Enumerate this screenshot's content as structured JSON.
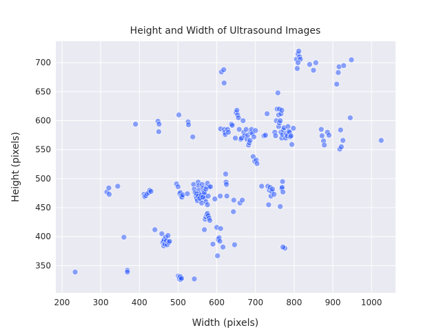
{
  "chart_data": {
    "type": "scatter",
    "title": "Height and Width of Ultrasound Images",
    "xlabel": "Width (pixels)",
    "ylabel": "Height (pixels)",
    "xlim": [
      184,
      1062
    ],
    "ylim": [
      303,
      737
    ],
    "xticks": [
      200,
      300,
      400,
      500,
      600,
      700,
      800,
      900,
      1000
    ],
    "yticks": [
      350,
      400,
      450,
      500,
      550,
      600,
      650,
      700
    ],
    "grid": true,
    "background_color": "#eaeaf2",
    "point_color": "#1f4fff",
    "point_opacity": 0.5,
    "points": [
      [
        234,
        339
      ],
      [
        316,
        477
      ],
      [
        321,
        484
      ],
      [
        322,
        473
      ],
      [
        344,
        487
      ],
      [
        360,
        399
      ],
      [
        369,
        342
      ],
      [
        369,
        339
      ],
      [
        390,
        594
      ],
      [
        412,
        473
      ],
      [
        414,
        469
      ],
      [
        417,
        471
      ],
      [
        420,
        474
      ],
      [
        424,
        476
      ],
      [
        427,
        480
      ],
      [
        430,
        478
      ],
      [
        440,
        412
      ],
      [
        448,
        599
      ],
      [
        450,
        581
      ],
      [
        451,
        594
      ],
      [
        458,
        405
      ],
      [
        460,
        390
      ],
      [
        462,
        392
      ],
      [
        463,
        384
      ],
      [
        464,
        395
      ],
      [
        466,
        387
      ],
      [
        468,
        399
      ],
      [
        470,
        393
      ],
      [
        472,
        386
      ],
      [
        474,
        402
      ],
      [
        476,
        390
      ],
      [
        478,
        392
      ],
      [
        496,
        491
      ],
      [
        500,
        332
      ],
      [
        502,
        330
      ],
      [
        503,
        327
      ],
      [
        504,
        329
      ],
      [
        506,
        331
      ],
      [
        507,
        326
      ],
      [
        509,
        328
      ],
      [
        500,
        486
      ],
      [
        502,
        610
      ],
      [
        504,
        474
      ],
      [
        506,
        476
      ],
      [
        508,
        470
      ],
      [
        510,
        468
      ],
      [
        512,
        472
      ],
      [
        524,
        474
      ],
      [
        526,
        598
      ],
      [
        527,
        593
      ],
      [
        538,
        572
      ],
      [
        542,
        327
      ],
      [
        540,
        490
      ],
      [
        542,
        482
      ],
      [
        544,
        476
      ],
      [
        546,
        470
      ],
      [
        548,
        466
      ],
      [
        550,
        462
      ],
      [
        552,
        494
      ],
      [
        553,
        488
      ],
      [
        554,
        480
      ],
      [
        556,
        474
      ],
      [
        558,
        468
      ],
      [
        560,
        464
      ],
      [
        561,
        458
      ],
      [
        562,
        490
      ],
      [
        564,
        484
      ],
      [
        566,
        478
      ],
      [
        568,
        472
      ],
      [
        570,
        466
      ],
      [
        572,
        460
      ],
      [
        574,
        486
      ],
      [
        576,
        492
      ],
      [
        578,
        470
      ],
      [
        580,
        486
      ],
      [
        548,
        474
      ],
      [
        552,
        470
      ],
      [
        556,
        466
      ],
      [
        560,
        472
      ],
      [
        564,
        468
      ],
      [
        568,
        476
      ],
      [
        572,
        482
      ],
      [
        576,
        455
      ],
      [
        568,
        412
      ],
      [
        570,
        430
      ],
      [
        572,
        434
      ],
      [
        574,
        438
      ],
      [
        576,
        440
      ],
      [
        578,
        436
      ],
      [
        580,
        432
      ],
      [
        582,
        428
      ],
      [
        584,
        486
      ],
      [
        590,
        387
      ],
      [
        595,
        465
      ],
      [
        600,
        416
      ],
      [
        602,
        367
      ],
      [
        604,
        395
      ],
      [
        606,
        398
      ],
      [
        608,
        392
      ],
      [
        609,
        470
      ],
      [
        610,
        586
      ],
      [
        610,
        414
      ],
      [
        612,
        684
      ],
      [
        616,
        382
      ],
      [
        618,
        688
      ],
      [
        619,
        665
      ],
      [
        620,
        585
      ],
      [
        621,
        580
      ],
      [
        622,
        576
      ],
      [
        623,
        508
      ],
      [
        624,
        494
      ],
      [
        625,
        490
      ],
      [
        626,
        470
      ],
      [
        628,
        585
      ],
      [
        630,
        580
      ],
      [
        638,
        594
      ],
      [
        640,
        592
      ],
      [
        643,
        443
      ],
      [
        644,
        463
      ],
      [
        646,
        386
      ],
      [
        648,
        570
      ],
      [
        650,
        614
      ],
      [
        652,
        618
      ],
      [
        654,
        610
      ],
      [
        656,
        605
      ],
      [
        658,
        585
      ],
      [
        660,
        458
      ],
      [
        662,
        568
      ],
      [
        664,
        570
      ],
      [
        666,
        463
      ],
      [
        668,
        600
      ],
      [
        670,
        580
      ],
      [
        672,
        574
      ],
      [
        676,
        585
      ],
      [
        678,
        568
      ],
      [
        680,
        575
      ],
      [
        682,
        558
      ],
      [
        684,
        562
      ],
      [
        686,
        566
      ],
      [
        688,
        580
      ],
      [
        690,
        585
      ],
      [
        692,
        578
      ],
      [
        694,
        538
      ],
      [
        696,
        572
      ],
      [
        698,
        530
      ],
      [
        700,
        583
      ],
      [
        702,
        532
      ],
      [
        704,
        526
      ],
      [
        716,
        487
      ],
      [
        722,
        574
      ],
      [
        726,
        575
      ],
      [
        730,
        612
      ],
      [
        732,
        487
      ],
      [
        734,
        455
      ],
      [
        736,
        480
      ],
      [
        738,
        485
      ],
      [
        740,
        470
      ],
      [
        742,
        478
      ],
      [
        744,
        482
      ],
      [
        748,
        473
      ],
      [
        750,
        580
      ],
      [
        752,
        574
      ],
      [
        754,
        600
      ],
      [
        756,
        620
      ],
      [
        758,
        648
      ],
      [
        760,
        590
      ],
      [
        762,
        596
      ],
      [
        764,
        452
      ],
      [
        766,
        580
      ],
      [
        768,
        570
      ],
      [
        770,
        576
      ],
      [
        772,
        584
      ],
      [
        774,
        588
      ],
      [
        776,
        380
      ],
      [
        778,
        570
      ],
      [
        780,
        578
      ],
      [
        782,
        574
      ],
      [
        784,
        590
      ],
      [
        786,
        582
      ],
      [
        788,
        580
      ],
      [
        790,
        572
      ],
      [
        792,
        574
      ],
      [
        794,
        559
      ],
      [
        798,
        587
      ],
      [
        768,
        483
      ],
      [
        769,
        485
      ],
      [
        770,
        495
      ],
      [
        771,
        477
      ],
      [
        771,
        382
      ],
      [
        760,
        610
      ],
      [
        762,
        620
      ],
      [
        764,
        600
      ],
      [
        766,
        612
      ],
      [
        768,
        618
      ],
      [
        806,
        706
      ],
      [
        808,
        690
      ],
      [
        810,
        715
      ],
      [
        812,
        720
      ],
      [
        814,
        710
      ],
      [
        816,
        706
      ],
      [
        810,
        700
      ],
      [
        840,
        697
      ],
      [
        850,
        687
      ],
      [
        856,
        700
      ],
      [
        870,
        585
      ],
      [
        872,
        574
      ],
      [
        876,
        565
      ],
      [
        878,
        558
      ],
      [
        886,
        580
      ],
      [
        890,
        575
      ],
      [
        910,
        663
      ],
      [
        914,
        683
      ],
      [
        916,
        693
      ],
      [
        918,
        551
      ],
      [
        920,
        584
      ],
      [
        922,
        555
      ],
      [
        926,
        566
      ],
      [
        928,
        695
      ],
      [
        945,
        605
      ],
      [
        948,
        705
      ],
      [
        1025,
        566
      ]
    ]
  }
}
